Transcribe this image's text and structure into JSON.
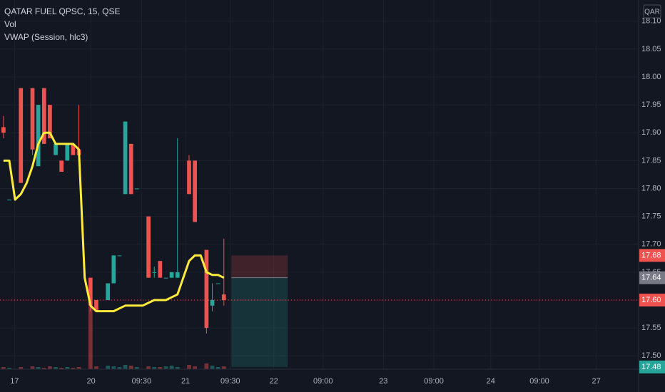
{
  "chart_data": {
    "type": "candlestick",
    "title": "QATAR FUEL QPSC, 15, QSE",
    "indicators": [
      "Vol",
      "VWAP (Session, hlc3)"
    ],
    "currency": "QAR",
    "up_color": "#26a69a",
    "down_color": "#ef5350",
    "x": [
      0,
      1,
      3,
      5,
      6,
      7,
      8,
      9,
      10,
      11,
      12,
      13,
      15,
      16,
      18,
      19,
      20,
      21,
      22,
      23,
      25,
      26,
      27,
      28,
      29,
      30,
      32,
      33,
      35,
      36,
      37,
      38
    ],
    "open": [
      17.91,
      17.78,
      17.98,
      17.98,
      17.84,
      17.98,
      17.95,
      17.86,
      17.85,
      17.85,
      17.88,
      17.87,
      17.64,
      17.6,
      17.6,
      17.63,
      17.68,
      17.79,
      17.88,
      17.8,
      17.75,
      17.65,
      17.67,
      17.64,
      17.64,
      17.64,
      17.85,
      17.85,
      17.69,
      17.59,
      17.63,
      17.61
    ],
    "high": [
      17.93,
      17.78,
      17.98,
      17.98,
      17.95,
      17.98,
      17.95,
      17.88,
      17.85,
      17.88,
      17.88,
      17.95,
      17.64,
      17.6,
      17.63,
      17.68,
      17.68,
      17.92,
      17.88,
      17.8,
      17.75,
      17.66,
      17.67,
      17.64,
      17.65,
      17.89,
      17.86,
      17.85,
      17.69,
      17.63,
      17.63,
      17.71
    ],
    "low": [
      17.89,
      17.78,
      17.81,
      17.86,
      17.84,
      17.88,
      17.89,
      17.86,
      17.83,
      17.85,
      17.86,
      17.84,
      17.58,
      17.58,
      17.6,
      17.63,
      17.68,
      17.79,
      17.79,
      17.8,
      17.64,
      17.64,
      17.64,
      17.64,
      17.64,
      17.64,
      17.79,
      17.74,
      17.54,
      17.58,
      17.63,
      17.59
    ],
    "close": [
      17.9,
      17.78,
      17.81,
      17.87,
      17.95,
      17.88,
      17.89,
      17.88,
      17.83,
      17.88,
      17.86,
      17.86,
      17.59,
      17.58,
      17.63,
      17.68,
      17.68,
      17.92,
      17.79,
      17.8,
      17.64,
      17.65,
      17.64,
      17.64,
      17.65,
      17.65,
      17.79,
      17.74,
      17.55,
      17.6,
      17.63,
      17.6
    ],
    "volume": [
      3,
      2,
      3,
      4,
      3,
      2,
      4,
      3,
      2,
      3,
      2,
      3,
      88,
      4,
      5,
      4,
      3,
      6,
      5,
      3,
      4,
      3,
      3,
      4,
      5,
      3,
      6,
      4,
      8,
      5,
      3,
      4
    ],
    "vwap": {
      "name": "VWAP (Session, hlc3)",
      "color": "#ffeb3b",
      "x": [
        0,
        1,
        2,
        3,
        4,
        5,
        6,
        7,
        8,
        9,
        10,
        11,
        12,
        13,
        14,
        15,
        16,
        17,
        18,
        19,
        20,
        21,
        22,
        23,
        24,
        25,
        26,
        27,
        28,
        29,
        30,
        31,
        32,
        33,
        34,
        35,
        36,
        37,
        38
      ],
      "values": [
        17.85,
        17.85,
        17.78,
        17.79,
        17.81,
        17.84,
        17.88,
        17.9,
        17.9,
        17.88,
        17.88,
        17.88,
        17.88,
        17.87,
        17.64,
        17.59,
        17.58,
        17.58,
        17.58,
        17.58,
        17.585,
        17.59,
        17.59,
        17.59,
        17.59,
        17.595,
        17.6,
        17.6,
        17.6,
        17.605,
        17.61,
        17.64,
        17.67,
        17.68,
        17.68,
        17.65,
        17.645,
        17.645,
        17.64
      ]
    },
    "position": {
      "x": [
        39.3,
        49.0
      ],
      "stop": 17.68,
      "entry": 17.64,
      "target": 17.48,
      "stop_color": "#ef5350",
      "entry_color": "#787b86",
      "target_color": "#26a69a"
    },
    "last_price": {
      "value": 17.6,
      "label": "17.60",
      "color": "#ef5350"
    },
    "xlim": [
      -0.6,
      109.5
    ],
    "ylim": [
      17.476,
      18.138
    ],
    "xticks": [
      {
        "value": 1.9,
        "label": "17"
      },
      {
        "value": 15.1,
        "label": "20"
      },
      {
        "value": 23.8,
        "label": "09:30"
      },
      {
        "value": 31.4,
        "label": "21"
      },
      {
        "value": 39.1,
        "label": "09:30"
      },
      {
        "value": 46.6,
        "label": "22"
      },
      {
        "value": 55.1,
        "label": "09:00"
      },
      {
        "value": 65.5,
        "label": "23"
      },
      {
        "value": 74.2,
        "label": "09:00"
      },
      {
        "value": 84.0,
        "label": "24"
      },
      {
        "value": 92.4,
        "label": "09:00"
      },
      {
        "value": 102.2,
        "label": "27"
      }
    ],
    "yticks": [
      {
        "value": 17.5,
        "label": "17.50"
      },
      17.55,
      {
        "value": 17.6,
        "label": "17.60"
      },
      17.65,
      {
        "value": 17.7,
        "label": "17.70"
      },
      17.75,
      {
        "value": 17.8,
        "label": "17.80"
      },
      17.85,
      {
        "value": 17.9,
        "label": "17.90"
      },
      17.95,
      {
        "value": 18.0,
        "label": "18.00"
      },
      18.05,
      {
        "value": 18.1,
        "label": "18.10"
      }
    ],
    "grid": true
  }
}
